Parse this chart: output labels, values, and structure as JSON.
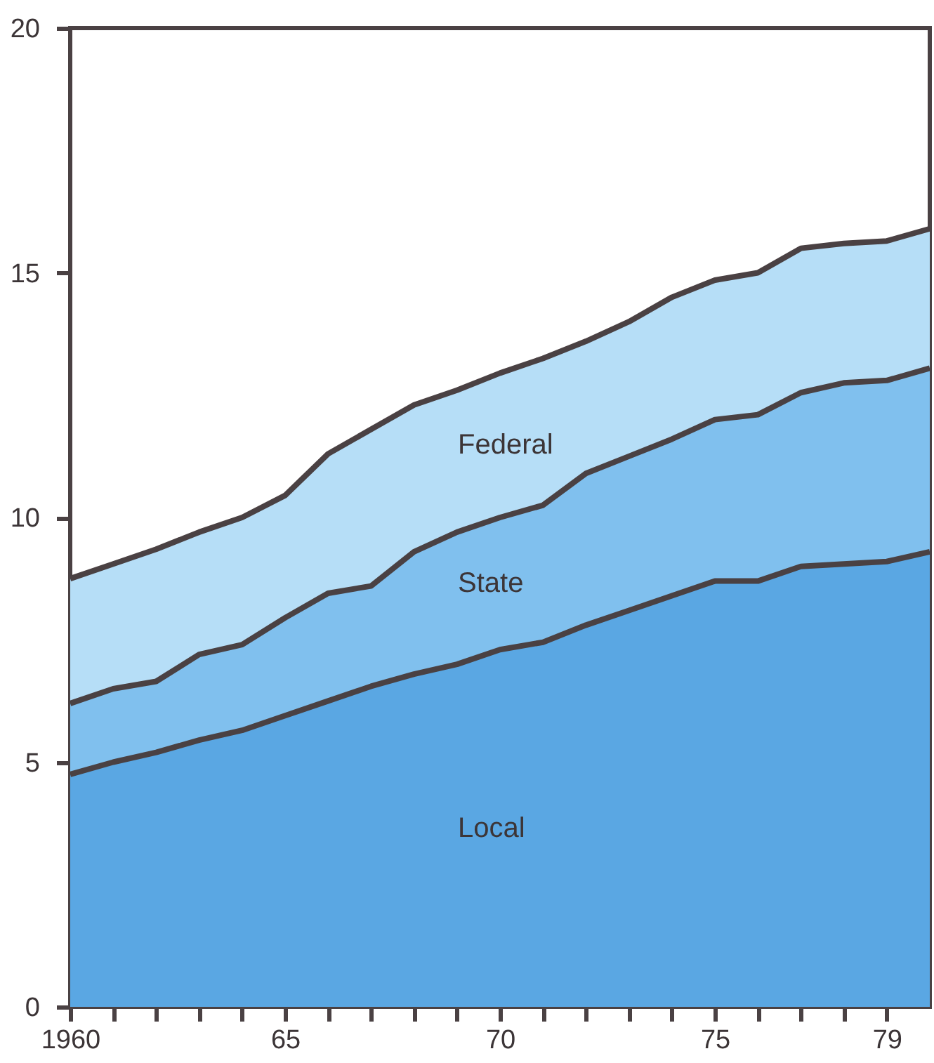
{
  "chart_data": {
    "type": "area",
    "stacked": true,
    "x": [
      1960,
      1961,
      1962,
      1963,
      1964,
      1965,
      1966,
      1967,
      1968,
      1969,
      1970,
      1971,
      1972,
      1973,
      1974,
      1975,
      1976,
      1977,
      1978,
      1979,
      1980
    ],
    "series": [
      {
        "name": "Local",
        "color": "#5aa7e3",
        "values": [
          4.75,
          5.0,
          5.2,
          5.45,
          5.65,
          5.95,
          6.25,
          6.55,
          6.8,
          7.0,
          7.3,
          7.45,
          7.8,
          8.1,
          8.4,
          8.7,
          8.7,
          9.0,
          9.05,
          9.1,
          9.3
        ]
      },
      {
        "name": "State",
        "color": "#80c0ee",
        "values": [
          1.45,
          1.5,
          1.45,
          1.75,
          1.75,
          2.0,
          2.2,
          2.05,
          2.5,
          2.7,
          2.7,
          2.8,
          3.1,
          3.15,
          3.2,
          3.3,
          3.4,
          3.55,
          3.7,
          3.7,
          3.75
        ]
      },
      {
        "name": "Federal",
        "color": "#b6def7",
        "values": [
          2.55,
          2.55,
          2.7,
          2.5,
          2.6,
          2.5,
          2.85,
          3.2,
          3.0,
          2.9,
          2.95,
          3.0,
          2.7,
          2.75,
          2.9,
          2.85,
          2.9,
          2.95,
          2.85,
          2.85,
          2.85
        ]
      }
    ],
    "xlim": [
      1960,
      1980
    ],
    "xticks": [
      {
        "value": 1960,
        "label": "1960"
      },
      {
        "value": 1961,
        "label": null
      },
      {
        "value": 1962,
        "label": null
      },
      {
        "value": 1963,
        "label": null
      },
      {
        "value": 1964,
        "label": null
      },
      {
        "value": 1965,
        "label": "65"
      },
      {
        "value": 1966,
        "label": null
      },
      {
        "value": 1967,
        "label": null
      },
      {
        "value": 1968,
        "label": null
      },
      {
        "value": 1969,
        "label": null
      },
      {
        "value": 1970,
        "label": "70"
      },
      {
        "value": 1971,
        "label": null
      },
      {
        "value": 1972,
        "label": null
      },
      {
        "value": 1973,
        "label": null
      },
      {
        "value": 1974,
        "label": null
      },
      {
        "value": 1975,
        "label": "75"
      },
      {
        "value": 1976,
        "label": null
      },
      {
        "value": 1977,
        "label": null
      },
      {
        "value": 1978,
        "label": null
      },
      {
        "value": 1979,
        "label": "79"
      }
    ],
    "ylim": [
      0,
      20
    ],
    "yticks": [
      0,
      5,
      10,
      15,
      20
    ],
    "grid": false,
    "line_style": "solid"
  }
}
